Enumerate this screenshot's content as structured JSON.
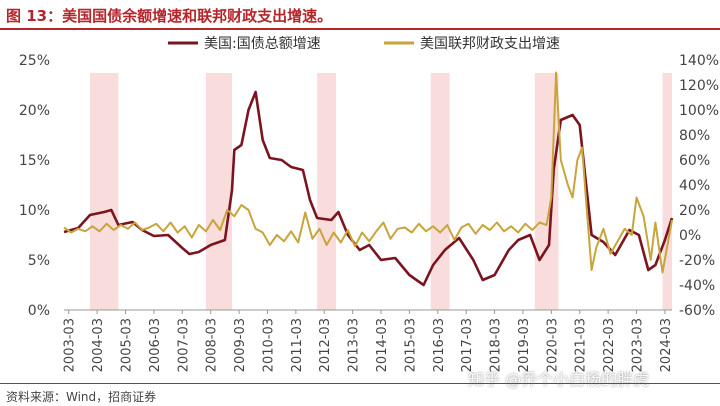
{
  "figure": {
    "title": "图 13：美国国债余额增速和联邦财政支出增速。",
    "source": "资料来源：Wind，招商证券",
    "watermark": "知乎 @乔个小白杨的胖虎"
  },
  "chart_data": {
    "type": "line",
    "title": "",
    "xlabel": "",
    "ylabel": "",
    "y_left": {
      "ticks": [
        "0%",
        "5%",
        "10%",
        "15%",
        "20%",
        "25%"
      ],
      "lim": [
        0,
        25
      ]
    },
    "y_right": {
      "ticks": [
        "-60%",
        "-40%",
        "-20%",
        "0%",
        "20%",
        "40%",
        "60%",
        "80%",
        "100%",
        "120%",
        "140%"
      ],
      "lim": [
        -60,
        140
      ]
    },
    "x_range": [
      "2003-01",
      "2024-06"
    ],
    "x_ticks": [
      "2003-03",
      "2004-03",
      "2005-03",
      "2006-03",
      "2007-03",
      "2008-03",
      "2009-03",
      "2010-03",
      "2011-03",
      "2012-03",
      "2013-03",
      "2014-03",
      "2015-03",
      "2016-03",
      "2017-03",
      "2018-03",
      "2019-03",
      "2020-03",
      "2021-03",
      "2022-03",
      "2023-03",
      "2024-03"
    ],
    "legend_position": "top",
    "grid": false,
    "shaded_periods": [
      [
        "2003-12",
        "2004-12"
      ],
      [
        "2008-01",
        "2008-12"
      ],
      [
        "2011-12",
        "2012-08"
      ],
      [
        "2015-12",
        "2016-08"
      ],
      [
        "2019-08",
        "2020-06"
      ],
      [
        "2024-02",
        "2024-06"
      ]
    ],
    "shade_color": "#f9dcdc",
    "series": [
      {
        "name": "美国:国债总额增速",
        "axis": "left",
        "color": "#7a1520",
        "points": [
          [
            "2003-01",
            7.8
          ],
          [
            "2003-07",
            8.2
          ],
          [
            "2003-12",
            9.5
          ],
          [
            "2004-06",
            9.8
          ],
          [
            "2004-09",
            10.0
          ],
          [
            "2004-12",
            8.5
          ],
          [
            "2005-06",
            8.8
          ],
          [
            "2005-10",
            8.0
          ],
          [
            "2006-03",
            7.4
          ],
          [
            "2006-09",
            7.5
          ],
          [
            "2007-03",
            6.2
          ],
          [
            "2007-06",
            5.6
          ],
          [
            "2007-10",
            5.8
          ],
          [
            "2008-03",
            6.5
          ],
          [
            "2008-09",
            7.0
          ],
          [
            "2008-12",
            12.0
          ],
          [
            "2009-01",
            16.0
          ],
          [
            "2009-04",
            16.5
          ],
          [
            "2009-07",
            20.0
          ],
          [
            "2009-10",
            21.8
          ],
          [
            "2010-01",
            17.0
          ],
          [
            "2010-04",
            15.2
          ],
          [
            "2010-09",
            15.0
          ],
          [
            "2011-01",
            14.3
          ],
          [
            "2011-06",
            14.0
          ],
          [
            "2011-09",
            11.0
          ],
          [
            "2011-12",
            9.2
          ],
          [
            "2012-06",
            9.0
          ],
          [
            "2012-09",
            9.8
          ],
          [
            "2013-01",
            7.5
          ],
          [
            "2013-06",
            6.0
          ],
          [
            "2013-10",
            6.5
          ],
          [
            "2014-03",
            5.0
          ],
          [
            "2014-09",
            5.2
          ],
          [
            "2015-03",
            3.5
          ],
          [
            "2015-09",
            2.5
          ],
          [
            "2016-01",
            4.5
          ],
          [
            "2016-06",
            6.0
          ],
          [
            "2016-12",
            7.2
          ],
          [
            "2017-06",
            5.0
          ],
          [
            "2017-10",
            3.0
          ],
          [
            "2018-03",
            3.5
          ],
          [
            "2018-09",
            6.0
          ],
          [
            "2019-01",
            7.0
          ],
          [
            "2019-06",
            7.5
          ],
          [
            "2019-10",
            5.0
          ],
          [
            "2020-02",
            6.5
          ],
          [
            "2020-04",
            14.0
          ],
          [
            "2020-07",
            19.0
          ],
          [
            "2020-12",
            19.5
          ],
          [
            "2021-03",
            18.5
          ],
          [
            "2021-08",
            7.5
          ],
          [
            "2022-01",
            6.8
          ],
          [
            "2022-06",
            5.5
          ],
          [
            "2022-12",
            8.0
          ],
          [
            "2023-04",
            7.5
          ],
          [
            "2023-08",
            4.0
          ],
          [
            "2023-11",
            4.5
          ],
          [
            "2024-03",
            7.0
          ],
          [
            "2024-06",
            9.2
          ]
        ]
      },
      {
        "name": "美国联邦财政支出增速",
        "axis": "right",
        "color": "#c9a43b",
        "points": [
          [
            "2003-01",
            6
          ],
          [
            "2003-04",
            2
          ],
          [
            "2003-07",
            5
          ],
          [
            "2003-10",
            3
          ],
          [
            "2004-01",
            7
          ],
          [
            "2004-04",
            3
          ],
          [
            "2004-07",
            9
          ],
          [
            "2004-10",
            4
          ],
          [
            "2005-01",
            8
          ],
          [
            "2005-04",
            5
          ],
          [
            "2005-07",
            10
          ],
          [
            "2005-10",
            4
          ],
          [
            "2006-01",
            6
          ],
          [
            "2006-04",
            9
          ],
          [
            "2006-07",
            3
          ],
          [
            "2006-10",
            10
          ],
          [
            "2007-01",
            2
          ],
          [
            "2007-04",
            7
          ],
          [
            "2007-07",
            -2
          ],
          [
            "2007-10",
            8
          ],
          [
            "2008-01",
            3
          ],
          [
            "2008-04",
            12
          ],
          [
            "2008-07",
            4
          ],
          [
            "2008-10",
            20
          ],
          [
            "2009-01",
            15
          ],
          [
            "2009-04",
            24
          ],
          [
            "2009-07",
            20
          ],
          [
            "2009-10",
            5
          ],
          [
            "2010-01",
            2
          ],
          [
            "2010-04",
            -8
          ],
          [
            "2010-07",
            0
          ],
          [
            "2010-10",
            -5
          ],
          [
            "2011-01",
            3
          ],
          [
            "2011-04",
            -6
          ],
          [
            "2011-07",
            18
          ],
          [
            "2011-10",
            -3
          ],
          [
            "2012-01",
            5
          ],
          [
            "2012-04",
            -8
          ],
          [
            "2012-07",
            2
          ],
          [
            "2012-10",
            -6
          ],
          [
            "2013-01",
            4
          ],
          [
            "2013-04",
            -9
          ],
          [
            "2013-07",
            2
          ],
          [
            "2013-10",
            -5
          ],
          [
            "2014-01",
            3
          ],
          [
            "2014-04",
            10
          ],
          [
            "2014-07",
            -3
          ],
          [
            "2014-10",
            5
          ],
          [
            "2015-01",
            6
          ],
          [
            "2015-04",
            2
          ],
          [
            "2015-07",
            9
          ],
          [
            "2015-10",
            3
          ],
          [
            "2016-01",
            7
          ],
          [
            "2016-04",
            2
          ],
          [
            "2016-07",
            8
          ],
          [
            "2016-10",
            -4
          ],
          [
            "2017-01",
            6
          ],
          [
            "2017-04",
            9
          ],
          [
            "2017-07",
            1
          ],
          [
            "2017-10",
            8
          ],
          [
            "2018-01",
            4
          ],
          [
            "2018-04",
            10
          ],
          [
            "2018-07",
            3
          ],
          [
            "2018-10",
            7
          ],
          [
            "2019-01",
            2
          ],
          [
            "2019-04",
            9
          ],
          [
            "2019-07",
            4
          ],
          [
            "2019-10",
            10
          ],
          [
            "2020-01",
            8
          ],
          [
            "2020-03",
            30
          ],
          [
            "2020-05",
            130
          ],
          [
            "2020-07",
            60
          ],
          [
            "2020-10",
            40
          ],
          [
            "2020-12",
            30
          ],
          [
            "2021-02",
            60
          ],
          [
            "2021-04",
            70
          ],
          [
            "2021-06",
            20
          ],
          [
            "2021-08",
            -28
          ],
          [
            "2021-10",
            -10
          ],
          [
            "2022-01",
            5
          ],
          [
            "2022-04",
            -15
          ],
          [
            "2022-07",
            -5
          ],
          [
            "2022-10",
            5
          ],
          [
            "2023-01",
            0
          ],
          [
            "2023-03",
            30
          ],
          [
            "2023-06",
            15
          ],
          [
            "2023-09",
            -20
          ],
          [
            "2023-11",
            10
          ],
          [
            "2024-02",
            -30
          ],
          [
            "2024-06",
            12
          ]
        ]
      }
    ]
  }
}
